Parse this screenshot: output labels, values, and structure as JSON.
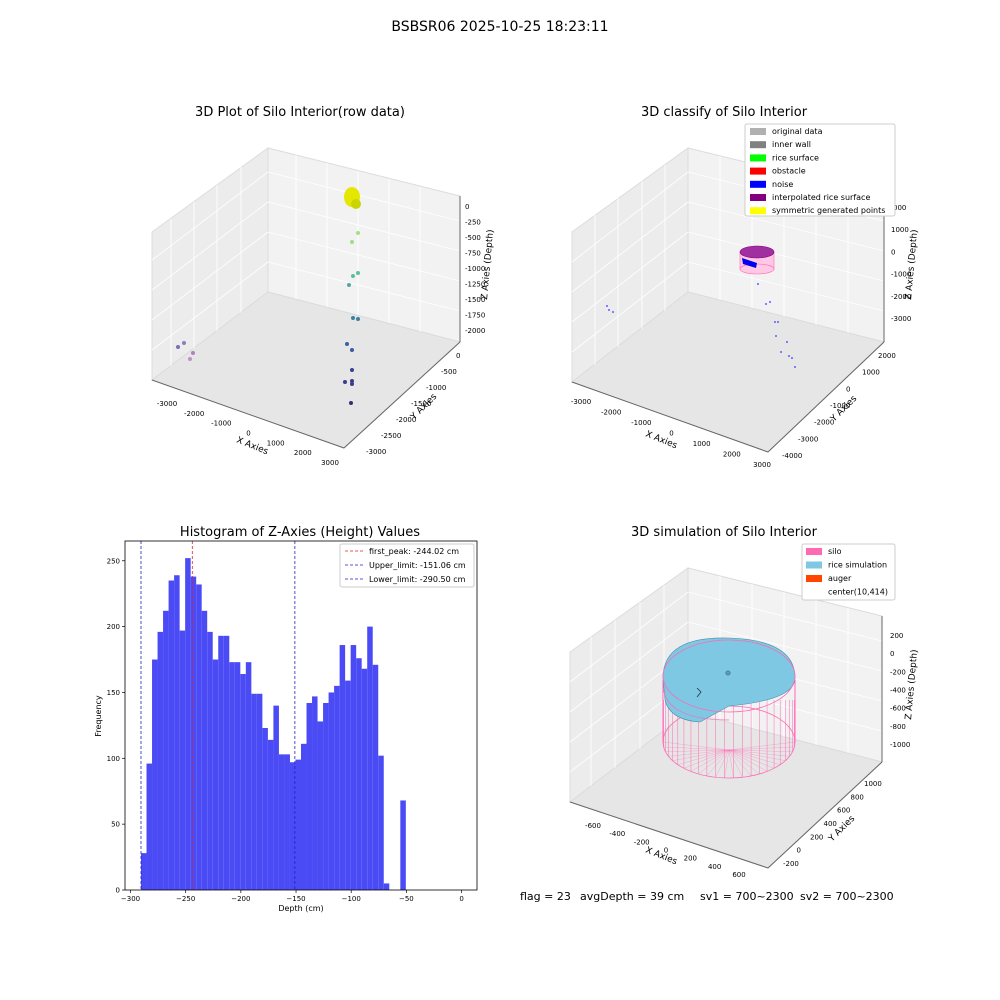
{
  "figure_title": "BSBSR06 2025-10-25 18:23:11",
  "footer": {
    "flag": "flag = 23",
    "avg_depth": "avgDepth = 39 cm",
    "sv1": "sv1 = 700~2300",
    "sv2": "sv2 = 700~2300"
  },
  "colors": {
    "hist_bar": "#4b4bf6",
    "peak_line": "#e02020",
    "limit_line": "#2020c0",
    "silo": "#ff69b4",
    "rice": "#7ec8e3",
    "auger": "#ff4500",
    "noise": "#0000ee",
    "interp": "#800080",
    "symmetric": "#ffff00"
  },
  "chart_data": [
    {
      "type": "scatter",
      "title": "3D Plot of Silo Interior(row data)",
      "xlabel": "X Axies",
      "ylabel": "Y Axies",
      "zlabel": "Z Axies (Depth)",
      "xticks": [
        "-3000",
        "-2000",
        "-1000",
        "0",
        "1000",
        "2000",
        "3000"
      ],
      "yticks": [
        "0",
        "-500",
        "-1000",
        "-1500",
        "-2000",
        "-2500",
        "-3000"
      ],
      "zticks": [
        "0",
        "-250",
        "-500",
        "-750",
        "-1000",
        "-1250",
        "-1500",
        "-1750",
        "-2000"
      ],
      "points_note": "yellow cluster near top, scattered green/blue points descending, purple points near x=-3000"
    },
    {
      "type": "scatter",
      "title": "3D classify of Silo Interior",
      "xlabel": "X Axies",
      "ylabel": "Y Axies",
      "zlabel": "Z Axies (Depth)",
      "xticks": [
        "-3000",
        "-2000",
        "-1000",
        "0",
        "1000",
        "2000",
        "3000"
      ],
      "yticks": [
        "2000",
        "1000",
        "0",
        "-1000",
        "-2000",
        "-3000",
        "-4000"
      ],
      "zticks": [
        "1000",
        "0",
        "-1000",
        "-2000",
        "-3000"
      ],
      "ztick_top_partial": "000",
      "legend": [
        {
          "label": "original data",
          "color": "#b0b0b0"
        },
        {
          "label": "inner wall",
          "color": "#808080"
        },
        {
          "label": "rice surface",
          "color": "#00ff00"
        },
        {
          "label": "obstacle",
          "color": "#ff0000"
        },
        {
          "label": "noise",
          "color": "#0000ff"
        },
        {
          "label": "interpolated rice surface",
          "color": "#800080"
        },
        {
          "label": "symmetric generated points",
          "color": "#ffff00"
        }
      ]
    },
    {
      "type": "bar",
      "title": "Histogram of Z-Axies (Height) Values",
      "xlabel": "Depth (cm)",
      "ylabel": "Frequency",
      "xlim": [
        -305,
        14
      ],
      "ylim": [
        0,
        265
      ],
      "xticks": [
        -300,
        -250,
        -200,
        -150,
        -100,
        -50,
        0
      ],
      "yticks": [
        0,
        50,
        100,
        150,
        200,
        250
      ],
      "bin_start": -290.5,
      "bin_width": 5,
      "values": [
        28,
        96,
        175,
        196,
        212,
        235,
        239,
        197,
        252,
        238,
        232,
        212,
        196,
        175,
        193,
        193,
        173,
        173,
        164,
        173,
        149,
        149,
        123,
        114,
        140,
        103,
        103,
        97,
        99,
        111,
        142,
        147,
        128,
        142,
        150,
        155,
        186,
        159,
        186,
        176,
        168,
        200,
        171,
        102,
        5,
        0,
        0,
        68
      ],
      "vlines": [
        {
          "label": "first_peak: -244.02 cm",
          "x": -244.02,
          "color": "#e02020"
        },
        {
          "label": "Upper_limit: -151.06 cm",
          "x": -151.06,
          "color": "#2020c0"
        },
        {
          "label": "Lower_limit: -290.50 cm",
          "x": -290.5,
          "color": "#2020c0"
        }
      ],
      "grid": false,
      "legend_position": "top-right"
    },
    {
      "type": "surface",
      "title": "3D simulation of Silo Interior",
      "xlabel": "X Axies",
      "ylabel": "Y Axies",
      "zlabel": "Z Axies (Depth)",
      "xticks": [
        "-600",
        "-400",
        "-200",
        "0",
        "200",
        "400",
        "600"
      ],
      "yticks": [
        "1000",
        "800",
        "600",
        "400",
        "200",
        "0",
        "-200"
      ],
      "zticks": [
        "200",
        "0",
        "-200",
        "-400",
        "-600",
        "-800",
        "-1000"
      ],
      "legend": [
        {
          "label": "silo",
          "color": "#ff69b4"
        },
        {
          "label": "rice simulation",
          "color": "#7ec8e3"
        },
        {
          "label": "auger",
          "color": "#ff4500"
        },
        {
          "label": "center(10,414)",
          "color": ""
        }
      ]
    }
  ]
}
